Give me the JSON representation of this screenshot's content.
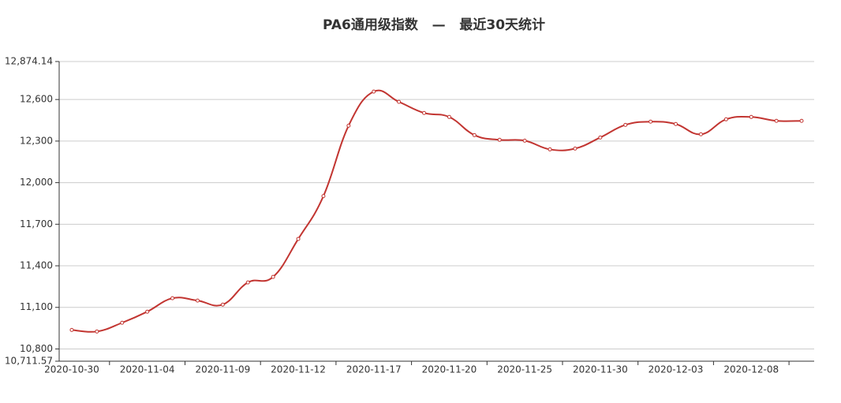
{
  "chart_data": {
    "type": "line",
    "title": "PA6通用级指数   —   最近30天统计",
    "categories": [
      "2020-10-30",
      null,
      null,
      "2020-11-04",
      null,
      null,
      "2020-11-09",
      null,
      null,
      "2020-11-12",
      null,
      null,
      "2020-11-17",
      null,
      null,
      "2020-11-20",
      null,
      null,
      "2020-11-25",
      null,
      null,
      "2020-11-30",
      null,
      null,
      "2020-12-03",
      null,
      null,
      "2020-12-08",
      null,
      null
    ],
    "series": [
      {
        "name": "PA6通用级",
        "color": "#c23531",
        "values": [
          10937,
          10926,
          10989,
          11069,
          11166,
          11149,
          11120,
          11280,
          11320,
          11594,
          11903,
          12411,
          12657,
          12583,
          12503,
          12474,
          12343,
          12309,
          12303,
          12240,
          12246,
          12326,
          12417,
          12440,
          12423,
          12349,
          12457,
          12474,
          12446,
          12446
        ]
      }
    ],
    "ylim": [
      10711.57,
      12874.14
    ],
    "yticks": [
      {
        "value": 10711.57,
        "label": "10,711.57"
      },
      {
        "value": 10800,
        "label": "10,800"
      },
      {
        "value": 11100,
        "label": "11,100"
      },
      {
        "value": 11400,
        "label": "11,400"
      },
      {
        "value": 11700,
        "label": "11,700"
      },
      {
        "value": 12000,
        "label": "12,000"
      },
      {
        "value": 12300,
        "label": "12,300"
      },
      {
        "value": 12600,
        "label": "12,600"
      },
      {
        "value": 12874.14,
        "label": "12,874.14"
      }
    ],
    "grid": true
  }
}
